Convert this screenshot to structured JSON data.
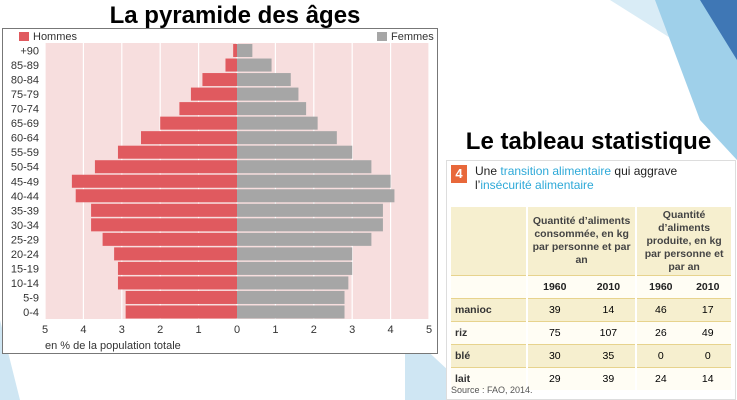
{
  "title_left": "La pyramide des âges",
  "title_right": "Le tableau statistique",
  "colors": {
    "hommes": "#e05a5f",
    "femmes": "#a6a6a6",
    "plot_bg": "#f7dede",
    "grid": "#ffffff"
  },
  "chart_data": {
    "type": "bar",
    "orientation": "horizontal-population-pyramid",
    "categories": [
      "0-4",
      "5-9",
      "10-14",
      "15-19",
      "20-24",
      "25-29",
      "30-34",
      "35-39",
      "40-44",
      "45-49",
      "50-54",
      "55-59",
      "60-64",
      "65-69",
      "70-74",
      "75-79",
      "80-84",
      "85-89",
      "+90"
    ],
    "series": [
      {
        "name": "Hommes",
        "values": [
          2.9,
          2.9,
          3.1,
          3.1,
          3.2,
          3.5,
          3.8,
          3.8,
          4.2,
          4.3,
          3.7,
          3.1,
          2.5,
          2.0,
          1.5,
          1.2,
          0.9,
          0.3,
          0.1
        ]
      },
      {
        "name": "Femmes",
        "values": [
          2.8,
          2.8,
          2.9,
          3.0,
          3.0,
          3.5,
          3.8,
          3.8,
          4.1,
          4.0,
          3.5,
          3.0,
          2.6,
          2.1,
          1.8,
          1.6,
          1.4,
          0.9,
          0.4
        ]
      }
    ],
    "xlim": [
      -5,
      5
    ],
    "xticks": [
      "5",
      "4",
      "3",
      "2",
      "1",
      "0",
      "1",
      "2",
      "3",
      "4",
      "5"
    ],
    "xlabel": "en % de la population totale",
    "legend_placement": "top"
  },
  "table": {
    "number": "4",
    "title_prefix": "Une ",
    "title_hl1": "transition alimentaire",
    "title_mid": " qui aggrave l’",
    "title_hl2": "insécurité alimentaire",
    "col_group_1": "Quantité d’aliments consommée, en kg par personne et par an",
    "col_group_2": "Quantité d’aliments produite, en kg par personne et par an",
    "years": [
      "1960",
      "2010",
      "1960",
      "2010"
    ],
    "rows": [
      {
        "label": "manioc",
        "values": [
          "39",
          "14",
          "46",
          "17"
        ]
      },
      {
        "label": "riz",
        "values": [
          "75",
          "107",
          "26",
          "49"
        ]
      },
      {
        "label": "blé",
        "values": [
          "30",
          "35",
          "0",
          "0"
        ]
      },
      {
        "label": "lait",
        "values": [
          "29",
          "39",
          "24",
          "14"
        ]
      }
    ],
    "source": "Source : FAO, 2014."
  }
}
